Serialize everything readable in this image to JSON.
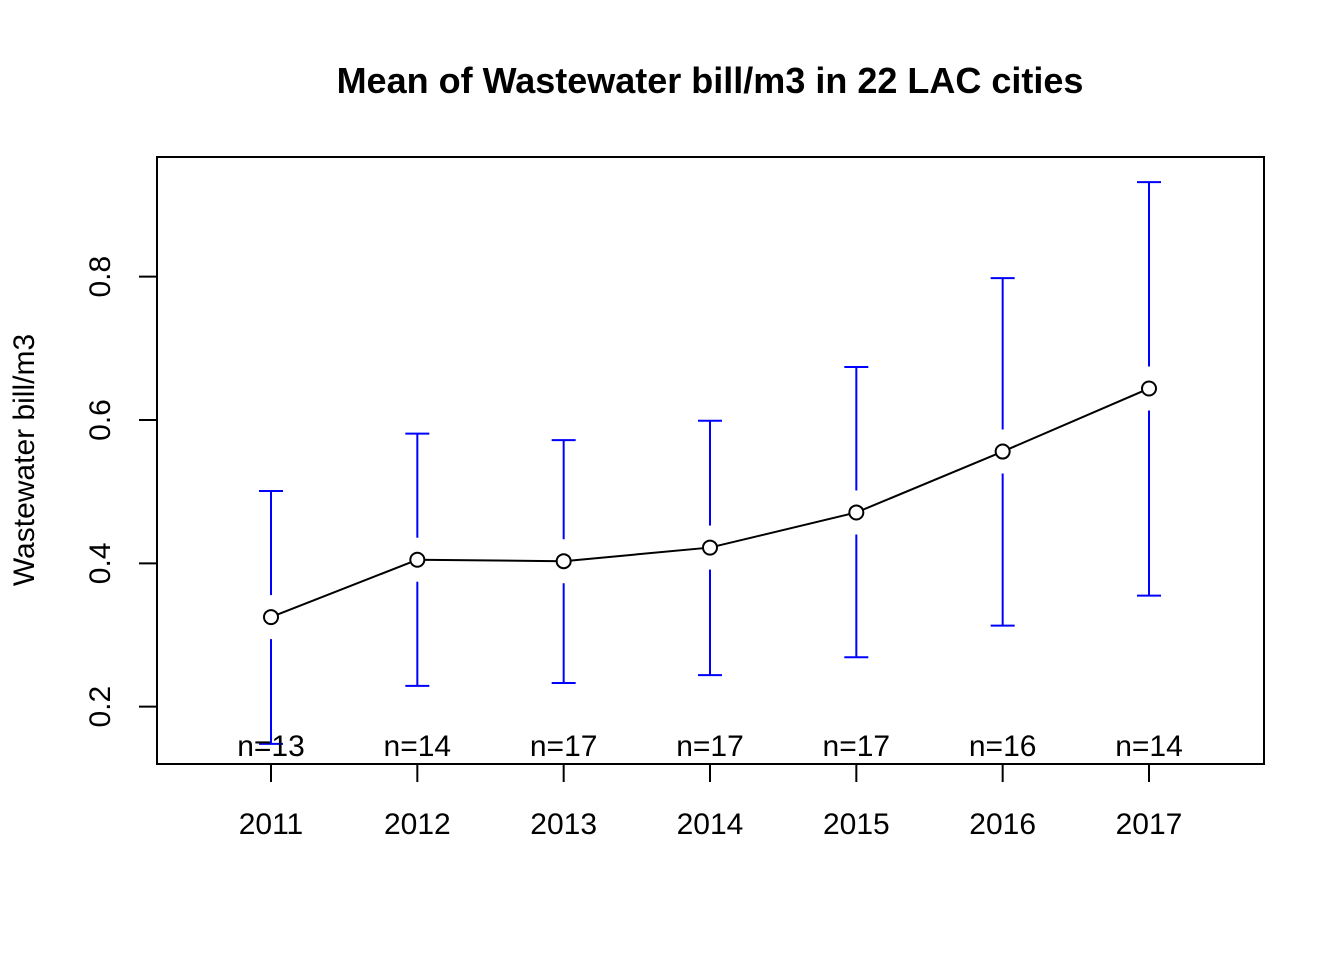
{
  "chart_data": {
    "type": "line",
    "title": "Mean of Wastewater bill/m3 in 22 LAC cities",
    "xlabel": "",
    "ylabel": "Wastewater bill/m3",
    "categories": [
      "2011",
      "2012",
      "2013",
      "2014",
      "2015",
      "2016",
      "2017"
    ],
    "series": [
      {
        "values": [
          0.325,
          0.405,
          0.403,
          0.422,
          0.471,
          0.556,
          0.644
        ],
        "lower": [
          0.148,
          0.229,
          0.233,
          0.244,
          0.269,
          0.313,
          0.355
        ],
        "upper": [
          0.501,
          0.581,
          0.572,
          0.599,
          0.674,
          0.798,
          0.932
        ]
      }
    ],
    "n_labels": [
      "n=13",
      "n=14",
      "n=17",
      "n=17",
      "n=17",
      "n=16",
      "n=14"
    ],
    "ylim": [
      0.12,
      0.967
    ],
    "yticks": [
      0.2,
      0.4,
      0.6,
      0.8
    ],
    "ytick_labels": [
      "0.2",
      "0.4",
      "0.6",
      "0.8"
    ],
    "grid": false,
    "colors": {
      "error_bars": "#0000ff",
      "line": "#000000",
      "points": "#000000"
    }
  }
}
